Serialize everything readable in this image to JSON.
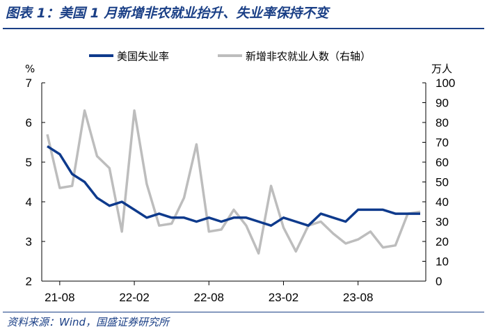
{
  "header": {
    "title": "图表 1：美国 1 月新增非农就业抬升、失业率保持不变"
  },
  "footer": {
    "source": "资料来源：Wind，国盛证券研究所"
  },
  "colors": {
    "brand": "#1a3f86",
    "unemployment_line": "#0e3a8c",
    "payrolls_line": "#bdbdbd"
  },
  "chart_data": {
    "type": "line",
    "left_unit": "%",
    "right_unit": "万人",
    "x_tick_labels": [
      "21-08",
      "22-02",
      "22-08",
      "23-02",
      "23-08"
    ],
    "y_left": {
      "min": 2,
      "max": 7,
      "ticks": [
        "2",
        "3",
        "4",
        "5",
        "6",
        "7"
      ]
    },
    "y_right": {
      "min": 0,
      "max": 100,
      "ticks": [
        "0",
        "10",
        "20",
        "30",
        "40",
        "50",
        "60",
        "70",
        "80",
        "90",
        "100"
      ]
    },
    "legend_position": "top",
    "x": [
      "2021-07",
      "2021-08",
      "2021-09",
      "2021-10",
      "2021-11",
      "2021-12",
      "2022-01",
      "2022-02",
      "2022-03",
      "2022-04",
      "2022-05",
      "2022-06",
      "2022-07",
      "2022-08",
      "2022-09",
      "2022-10",
      "2022-11",
      "2022-12",
      "2023-01",
      "2023-02",
      "2023-03",
      "2023-04",
      "2023-05",
      "2023-06",
      "2023-07",
      "2023-08",
      "2023-09",
      "2023-10",
      "2023-11",
      "2023-12",
      "2024-01"
    ],
    "series": [
      {
        "name": "美国失业率",
        "axis": "left",
        "values": [
          5.4,
          5.2,
          4.7,
          4.5,
          4.1,
          3.9,
          4.0,
          3.8,
          3.6,
          3.7,
          3.6,
          3.6,
          3.5,
          3.6,
          3.5,
          3.6,
          3.6,
          3.5,
          3.4,
          3.6,
          3.5,
          3.4,
          3.7,
          3.6,
          3.5,
          3.8,
          3.8,
          3.8,
          3.7,
          3.7,
          3.7
        ]
      },
      {
        "name": "新增非农就业人数（右轴）",
        "axis": "right",
        "values": [
          74,
          47,
          48,
          86,
          63,
          57,
          25,
          86,
          49,
          28,
          29,
          42,
          69,
          25,
          26,
          36,
          28,
          14,
          48,
          27,
          15,
          28,
          30,
          24,
          19,
          21,
          25,
          17,
          18,
          34,
          35
        ]
      }
    ]
  }
}
